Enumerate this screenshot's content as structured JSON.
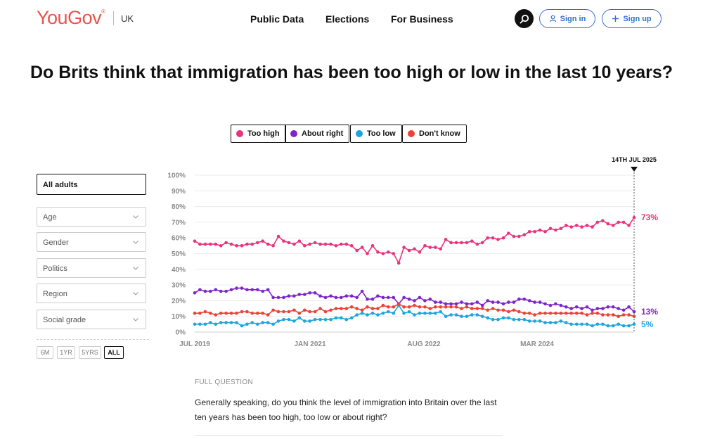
{
  "header": {
    "logo": "YouGov",
    "logo_mark": "®",
    "region": "UK",
    "nav": [
      "Public Data",
      "Elections",
      "For Business"
    ],
    "sign_in": "Sign in",
    "sign_up": "Sign up"
  },
  "page_title": "Do Brits think that immigration has been too high or low in the last 10 years?",
  "legend": [
    {
      "label": "Too high",
      "color": "#e8337f"
    },
    {
      "label": "About right",
      "color": "#7e25c9"
    },
    {
      "label": "Too low",
      "color": "#1ba6df"
    },
    {
      "label": "Don't know",
      "color": "#ee4136"
    }
  ],
  "filters": {
    "main": "All adults",
    "items": [
      "Age",
      "Gender",
      "Politics",
      "Region",
      "Social grade"
    ]
  },
  "range_buttons": [
    "6M",
    "1YR",
    "5YRS",
    "ALL"
  ],
  "question": {
    "label": "FULL QUESTION",
    "text": "Generally speaking, do you think the level of immigration into Britain over the last ten years has been too high, too low or about right?"
  },
  "chart_data": {
    "type": "line",
    "title": "Do Brits think that immigration has been too high or low in the last 10 years?",
    "x_tick_labels": [
      "JUL 2019",
      "JAN 2021",
      "AUG 2022",
      "MAR 2024"
    ],
    "y_tick_labels": [
      "0%",
      "10%",
      "20%",
      "30%",
      "40%",
      "50%",
      "60%",
      "70%",
      "80%",
      "90%",
      "100%"
    ],
    "ylim": [
      0,
      100
    ],
    "x_start": "Jul 2019",
    "x_end": "14th Jul 2025",
    "marker_label": "14TH JUL 2025",
    "end_labels": {
      "Too high": "73%",
      "About right": "13%",
      "Too low": "5%"
    },
    "series": [
      {
        "name": "Too high",
        "color": "#e8337f",
        "values": [
          58,
          56,
          56,
          56,
          56,
          55,
          57,
          56,
          55,
          55,
          56,
          56,
          57,
          58,
          56,
          55,
          61,
          58,
          57,
          56,
          58,
          55,
          56,
          57,
          56,
          56,
          56,
          55,
          56,
          56,
          55,
          52,
          54,
          50,
          55,
          51,
          50,
          51,
          50,
          44,
          54,
          52,
          53,
          51,
          55,
          54,
          54,
          53,
          59,
          57,
          57,
          57,
          57,
          58,
          56,
          57,
          60,
          60,
          59,
          60,
          63,
          61,
          61,
          62,
          64,
          64,
          65,
          64,
          66,
          65,
          66,
          68,
          67,
          68,
          67,
          68,
          67,
          70,
          71,
          69,
          68,
          70,
          70,
          68,
          73
        ]
      },
      {
        "name": "About right",
        "color": "#7e25c9",
        "values": [
          25,
          27,
          26,
          26,
          27,
          26,
          26,
          27,
          28,
          28,
          27,
          27,
          27,
          26,
          27,
          22,
          22,
          22,
          23,
          23,
          24,
          24,
          25,
          25,
          23,
          22,
          23,
          22,
          22,
          23,
          23,
          22,
          26,
          21,
          21,
          23,
          22,
          22,
          22,
          18,
          22,
          21,
          20,
          22,
          20,
          21,
          19,
          19,
          18,
          18,
          18,
          19,
          18,
          18,
          19,
          17,
          20,
          19,
          19,
          18,
          19,
          19,
          21,
          21,
          20,
          19,
          19,
          18,
          17,
          18,
          17,
          16,
          15,
          16,
          15,
          16,
          14,
          15,
          15,
          16,
          16,
          15,
          14,
          16,
          13
        ]
      },
      {
        "name": "Too low",
        "color": "#1ba6df",
        "values": [
          5,
          5,
          5,
          6,
          5,
          6,
          6,
          6,
          6,
          4,
          5,
          6,
          5,
          6,
          6,
          5,
          7,
          8,
          8,
          7,
          9,
          7,
          7,
          8,
          8,
          8,
          8,
          9,
          9,
          8,
          9,
          11,
          12,
          11,
          12,
          11,
          12,
          13,
          12,
          17,
          12,
          13,
          11,
          12,
          12,
          12,
          12,
          13,
          10,
          11,
          11,
          10,
          10,
          11,
          11,
          10,
          9,
          8,
          8,
          9,
          9,
          8,
          8,
          8,
          7,
          7,
          7,
          6,
          6,
          6,
          7,
          6,
          5,
          5,
          5,
          5,
          4,
          5,
          5,
          4,
          4,
          5,
          4,
          4,
          5
        ]
      },
      {
        "name": "Don't know",
        "color": "#ee4136",
        "values": [
          12,
          12,
          13,
          12,
          11,
          12,
          12,
          12,
          12,
          13,
          13,
          12,
          12,
          12,
          11,
          14,
          13,
          13,
          13,
          14,
          12,
          14,
          13,
          13,
          15,
          13,
          14,
          15,
          15,
          15,
          16,
          15,
          14,
          16,
          15,
          15,
          17,
          16,
          16,
          18,
          16,
          16,
          17,
          16,
          16,
          15,
          16,
          16,
          16,
          16,
          16,
          15,
          16,
          15,
          15,
          15,
          14,
          15,
          14,
          14,
          13,
          14,
          13,
          12,
          12,
          11,
          12,
          12,
          12,
          12,
          12,
          12,
          12,
          12,
          12,
          11,
          12,
          12,
          11,
          11,
          11,
          10,
          11,
          11,
          10
        ]
      }
    ]
  }
}
